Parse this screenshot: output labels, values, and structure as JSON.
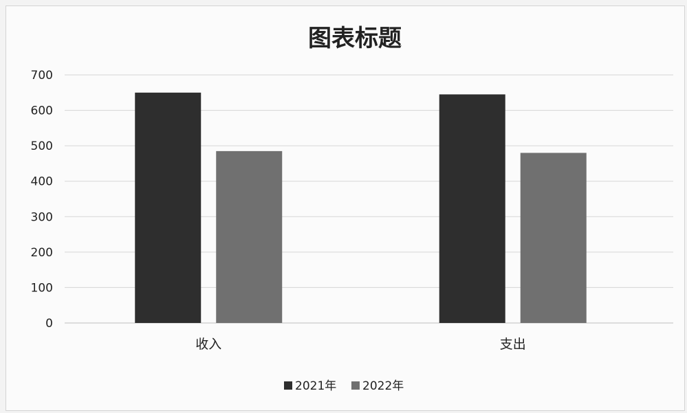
{
  "chart_data": {
    "type": "bar",
    "title": "图表标题",
    "categories": [
      "收入",
      "支出"
    ],
    "series": [
      {
        "name": "2021年",
        "values": [
          650,
          645
        ],
        "color": "#2e2e2e"
      },
      {
        "name": "2022年",
        "values": [
          485,
          480
        ],
        "color": "#707070"
      }
    ],
    "ylim": [
      0,
      700
    ],
    "yticks": [
      0,
      100,
      200,
      300,
      400,
      500,
      600,
      700
    ],
    "xlabel": "",
    "ylabel": "",
    "grid": true,
    "legend_position": "bottom"
  }
}
